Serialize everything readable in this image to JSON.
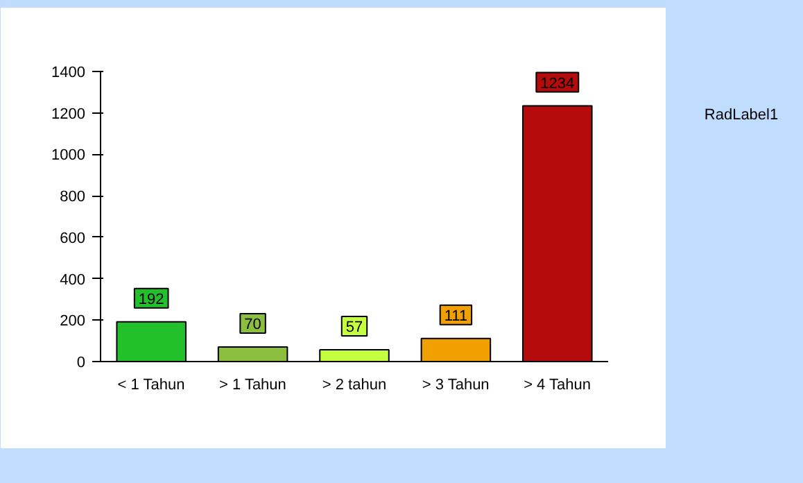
{
  "chart_data": {
    "type": "bar",
    "categories": [
      "< 1 Tahun",
      "> 1 Tahun",
      "> 2 tahun",
      "> 3 Tahun",
      "> 4 Tahun"
    ],
    "values": [
      192,
      70,
      57,
      111,
      1234
    ],
    "colors": [
      "#22c02a",
      "#8cbf40",
      "#c4ff40",
      "#f0a000",
      "#b40c0c"
    ],
    "ylim": [
      0,
      1400
    ],
    "yticks": [
      0,
      200,
      400,
      600,
      800,
      1000,
      1200,
      1400
    ],
    "grid": false,
    "data_labels": true,
    "annotations": [
      "RadLabel1"
    ]
  }
}
